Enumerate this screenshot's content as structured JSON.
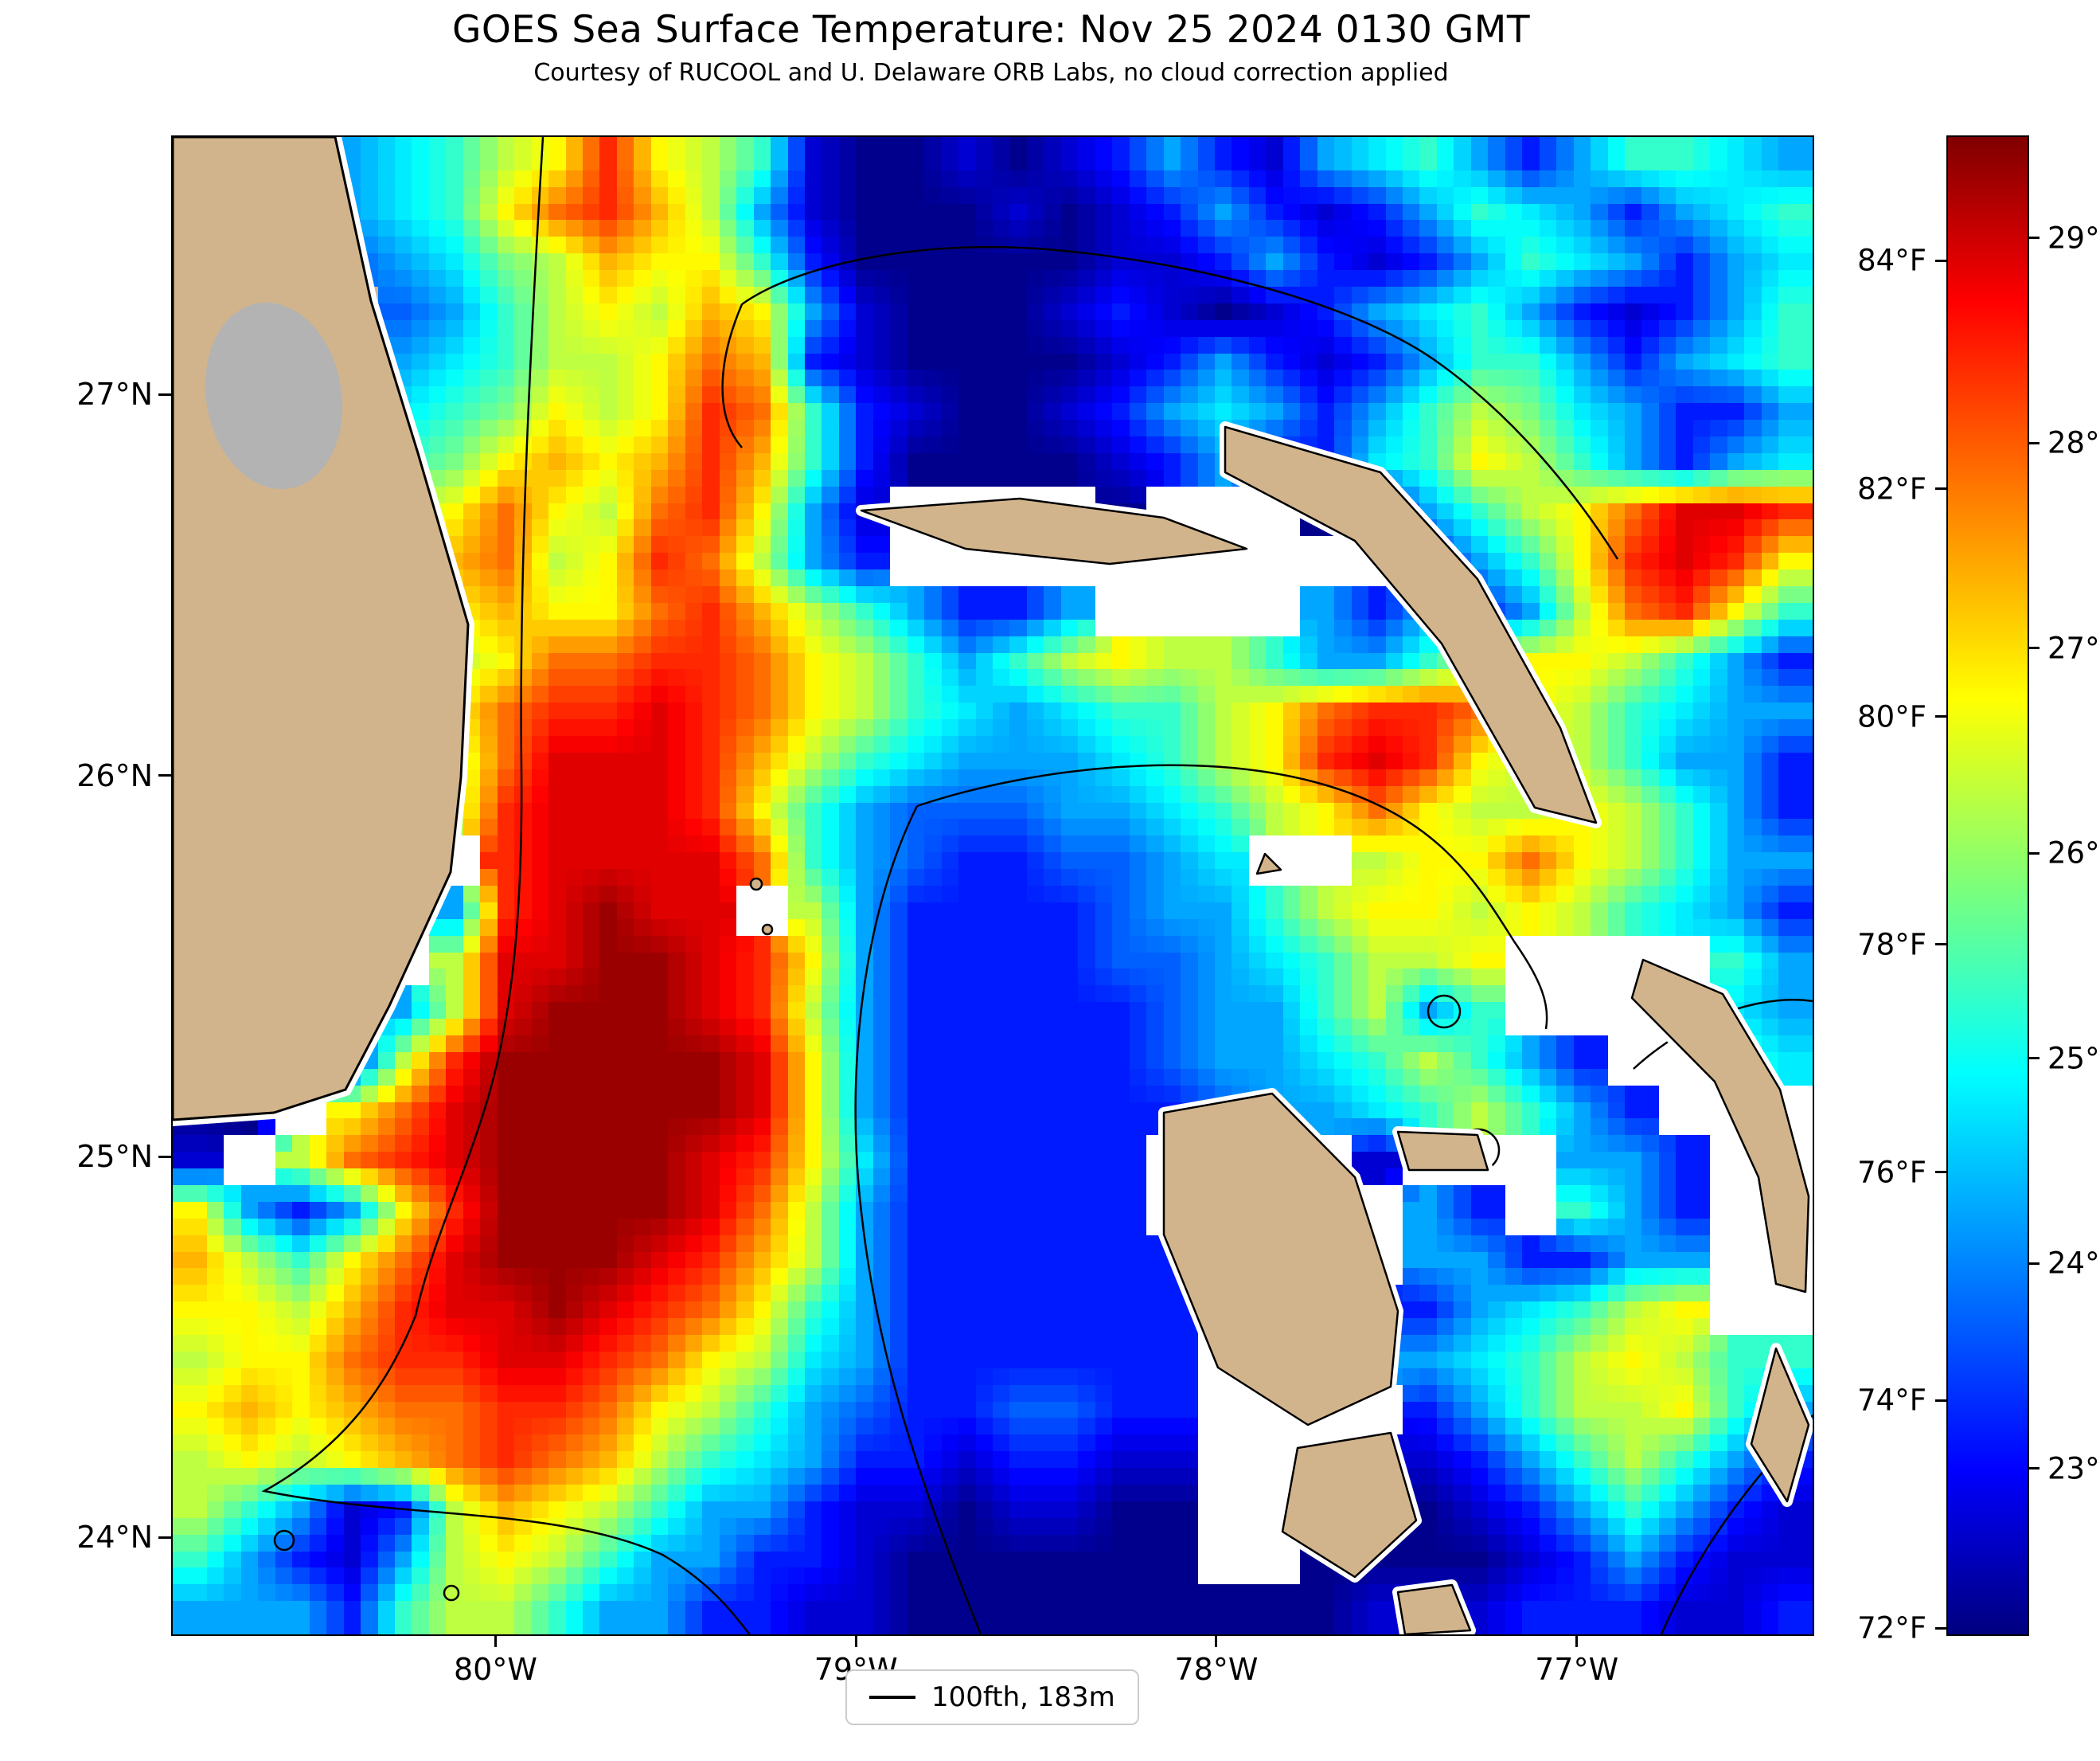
{
  "title": "GOES Sea Surface Temperature: Nov 25 2024 0130 GMT",
  "subtitle": "Courtesy of RUCOOL and U. Delaware ORB Labs, no cloud correction applied",
  "legend": {
    "label": "100fth, 183m"
  },
  "chart_data": {
    "type": "heatmap",
    "title": "GOES Sea Surface Temperature: Nov 25 2024 0130 GMT",
    "subtitle": "Courtesy of RUCOOL and U. Delaware ORB Labs, no cloud correction applied",
    "units": "°C",
    "colormap": "jet",
    "lon_range": [
      -80.9,
      -76.35
    ],
    "lat_range": [
      23.75,
      27.68
    ],
    "x_ticks": [
      {
        "label": "80°W",
        "lon": -80
      },
      {
        "label": "79°W",
        "lon": -79
      },
      {
        "label": "78°W",
        "lon": -78
      },
      {
        "label": "77°W",
        "lon": -77
      }
    ],
    "y_ticks": [
      {
        "label": "27°N",
        "lat": 27
      },
      {
        "label": "26°N",
        "lat": 26
      },
      {
        "label": "25°N",
        "lat": 25
      },
      {
        "label": "24°N",
        "lat": 24
      }
    ],
    "colorbar": {
      "min_c": 22.2,
      "max_c": 29.5,
      "min_f": 71.96,
      "max_f": 85.1,
      "f_ticks": [
        {
          "label": "84°F",
          "value": 84
        },
        {
          "label": "82°F",
          "value": 82
        },
        {
          "label": "80°F",
          "value": 80
        },
        {
          "label": "78°F",
          "value": 78
        },
        {
          "label": "76°F",
          "value": 76
        },
        {
          "label": "74°F",
          "value": 74
        },
        {
          "label": "72°F",
          "value": 72
        }
      ],
      "c_ticks": [
        {
          "label": "29°C",
          "value": 29
        },
        {
          "label": "28°C",
          "value": 28
        },
        {
          "label": "27°C",
          "value": 27
        },
        {
          "label": "26°C",
          "value": 26
        },
        {
          "label": "25°C",
          "value": 25
        },
        {
          "label": "24°C",
          "value": 24
        },
        {
          "label": "23°C",
          "value": 23
        }
      ]
    },
    "legend_entries": [
      "100fth, 183m"
    ],
    "colors": {
      "land": "#d2b48c",
      "cloud_gray": "#b3b3b3",
      "nodata": "#ffffff"
    },
    "temp_codes": "0123456789abcde",
    "code_base_c": 22.3,
    "code_step_c": 0.5,
    "land_code": "L",
    "cloud_gray_code": "G",
    "nodata_code": ".",
    "grid": [
      "LLL45689c98610010124214564246654",
      "LLL4569bca8410001012421246542456",
      "LLL34578a996200000112421246542 45",
      "LGGL346898a941000121012456421246",
      "LGGL456889ba21000012421246642456",
      "LGGL567989cb62100124542468754224",
      "LLLL679a9aca62000012422569864245",
      "LLLL89b98bc941....0...014689bddc",
      "LLLL9ab89cb842..........2469cdc9",
      "LLLLL9a99bca864224....424248bc96",
      "LLLLL89bbccb98646898864468998642",
      "LLLLL9bccdcb9865456689bccb986544",
      "LLLLL8bdddca8654445689cdc9886442",
      "LLLLL8cdddc964333445689b98898642",
      "LLLLL.cddddb643223345..899b98644",
      "LLLLL4cdedd.84222234468998986542",
      "LLLL.8ddeedc94222233456889....64",
      "LLL.48deeedc84222223446846....54",
      "LL.28ceeeeed9422222344568642..65",
      "00.9bdeeeeed94222222344568642...",
      "1.8bcdeeeedc9522222....1...442..",
      "94249ceeeedb8422222.....42.642..",
      "a869bdeeedca84222222....442244..",
      "998acddedcb964222222...2245689..",
      "899bccddcb9854222222...445689866",
      "9a9abbccb98643223322....24688964",
      "8989abcba86542212211...112468642",
      "864128a9864421101100...001246421",
      "642148986442210000 00..0000124211",
      "44426886442211000000000111222112"
    ]
  }
}
